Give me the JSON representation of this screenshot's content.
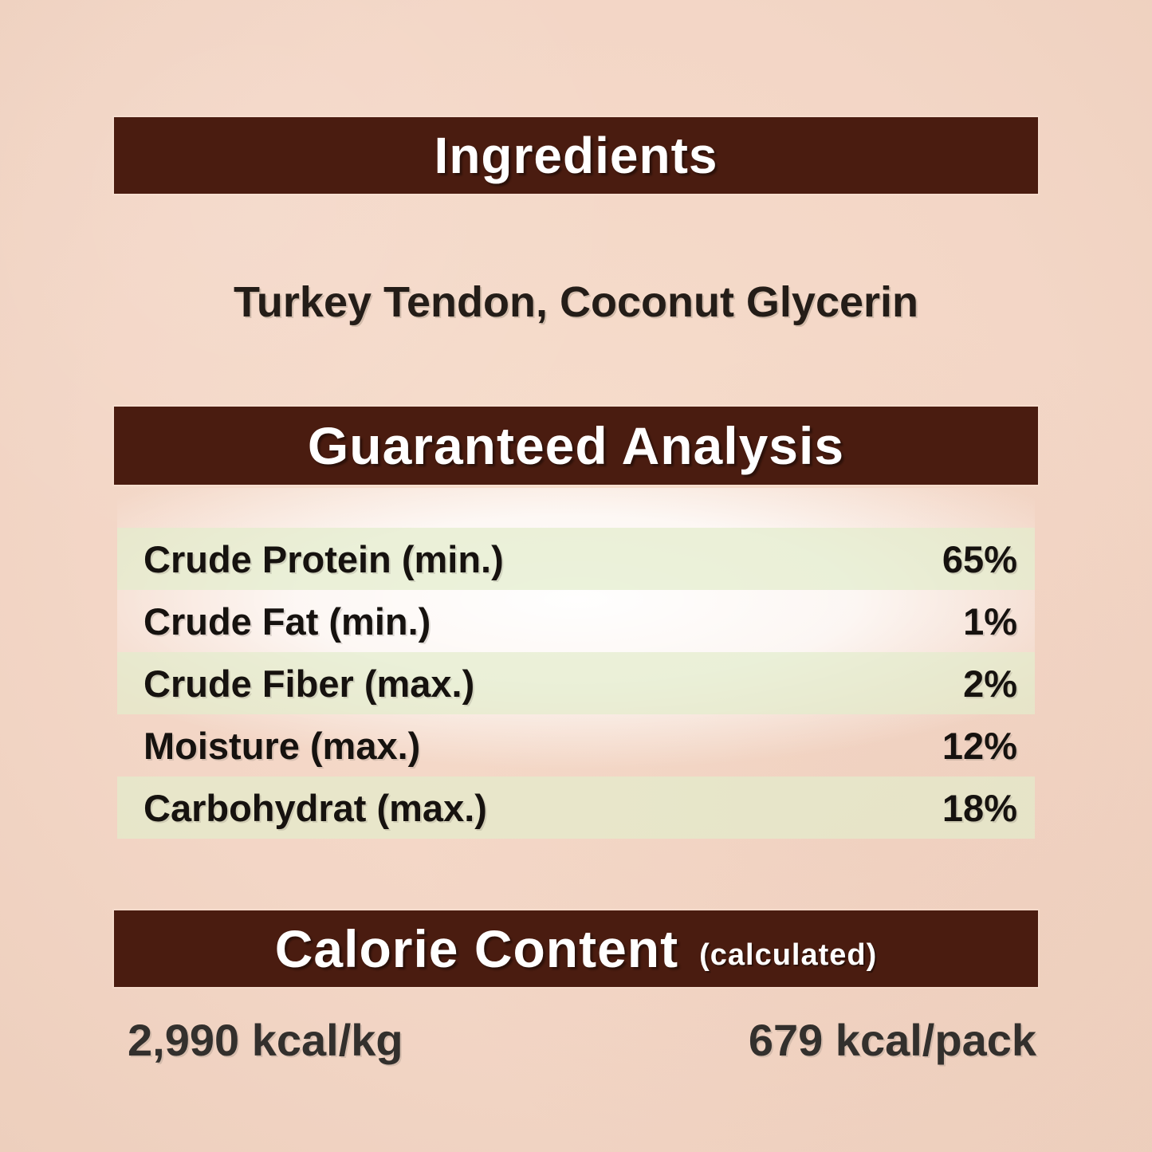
{
  "ingredients": {
    "title": "Ingredients",
    "text": "Turkey Tendon, Coconut Glycerin"
  },
  "guaranteed_analysis": {
    "title": "Guaranteed Analysis",
    "rows": [
      {
        "name": "Crude Protein (min.)",
        "value": "65%"
      },
      {
        "name": "Crude Fat (min.)",
        "value": "1%"
      },
      {
        "name": "Crude Fiber (max.)",
        "value": "2%"
      },
      {
        "name": "Moisture (max.)",
        "value": "12%"
      },
      {
        "name": "Carbohydrat (max.)",
        "value": "18%"
      }
    ]
  },
  "calorie_content": {
    "title": "Calorie Content",
    "qualifier": "(calculated)",
    "per_kg": "2,990 kcal/kg",
    "per_pack": "679 kcal/pack"
  },
  "colors": {
    "header_bar": "#4a1c10",
    "paper_background": "#f3d6c6",
    "row_band": "#e3ecc9",
    "dark_text": "#16120f",
    "calorie_text": "#33302d",
    "header_text": "#ffffff"
  }
}
